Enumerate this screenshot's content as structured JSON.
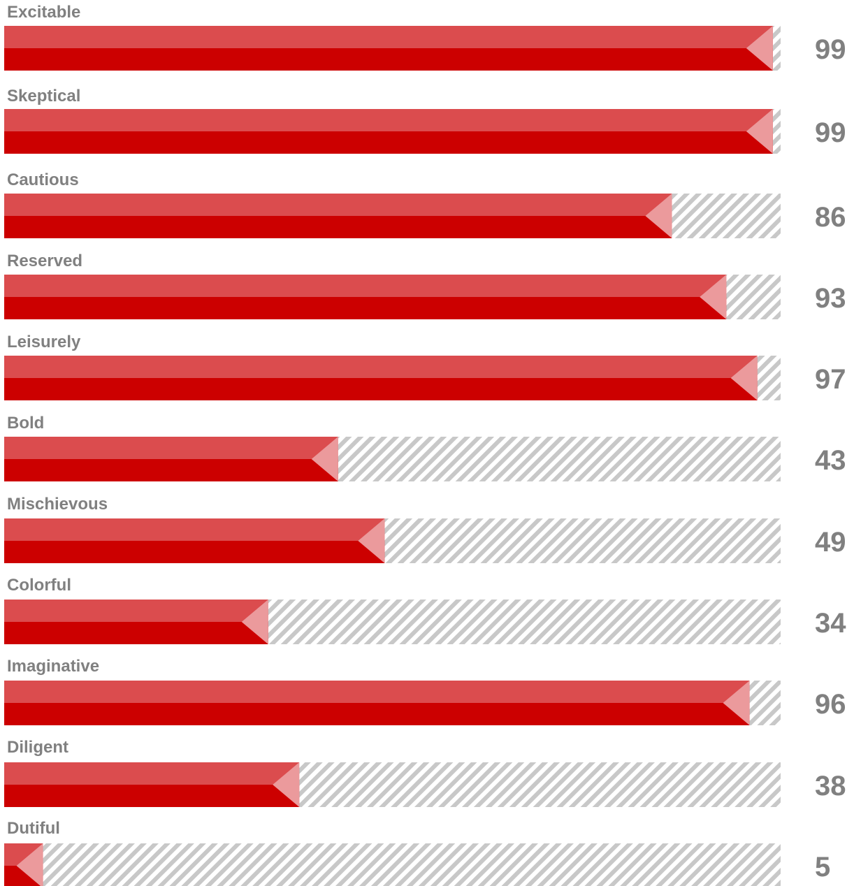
{
  "chart_data": {
    "type": "bar",
    "orientation": "horizontal",
    "categories": [
      "Excitable",
      "Skeptical",
      "Cautious",
      "Reserved",
      "Leisurely",
      "Bold",
      "Mischievous",
      "Colorful",
      "Imaginative",
      "Diligent",
      "Dutiful"
    ],
    "values": [
      99,
      99,
      86,
      93,
      97,
      43,
      49,
      34,
      96,
      38,
      5
    ],
    "value_labels": [
      "99",
      "99",
      "86",
      "93",
      "97",
      "43",
      "49",
      "34",
      "96",
      "38",
      "5"
    ],
    "xlim": [
      0,
      100
    ],
    "title": "",
    "xlabel": "",
    "ylabel": "",
    "grid": false,
    "legend": "none",
    "colors": {
      "bar_top": "#db4c4e",
      "bar_bottom": "#cc0000",
      "bar_tip": "#eb9a9c",
      "track_stripe": "#c8c8c8",
      "track_bg": "#ffffff",
      "label_text": "#808080",
      "value_text": "#808080"
    }
  }
}
